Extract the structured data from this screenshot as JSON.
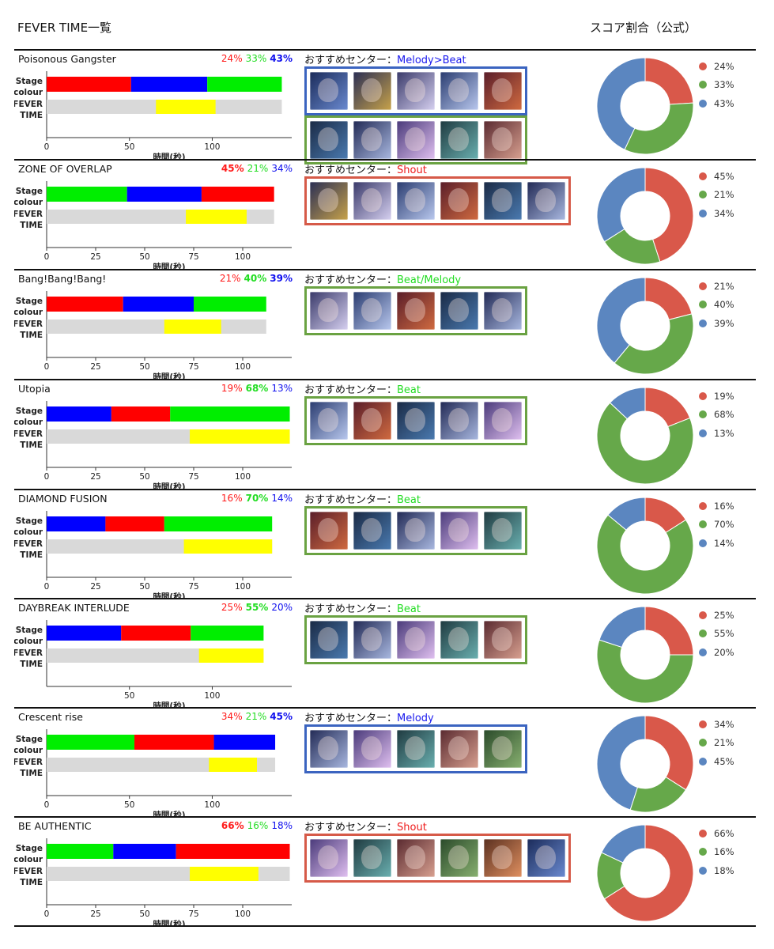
{
  "header": {
    "title": "FEVER TIME一覧",
    "score_label": "スコア割合（公式）"
  },
  "labels": {
    "stage": [
      "Stage",
      "colour"
    ],
    "fever": [
      "FEVER",
      "TIME"
    ],
    "xaxis": "時間(秒)",
    "recommend_prefix": "おすすめセンター："
  },
  "colors": {
    "stage_red": "#ff0000",
    "stage_green": "#00ee00",
    "stage_blue": "#0000ff",
    "fever_yellow": "#ffff00",
    "fever_bg": "#d9d9d9",
    "donut_red": "#d9584a",
    "donut_green": "#66a84a",
    "donut_blue": "#5b86c0",
    "frame_melody": "#3b64c0",
    "frame_shout": "#d65a48",
    "frame_beat": "#6aa242",
    "rec_melody": "#1a1aee",
    "rec_shout": "#ee1a1a",
    "rec_beat": "#22dd22"
  },
  "chart_data": [
    {
      "type": "bar",
      "title": "Poisonous Gangster",
      "ticks": [
        0,
        50,
        100
      ],
      "xlim": [
        0,
        148
      ],
      "stage": [
        {
          "color": "red",
          "start": 0,
          "end": 51
        },
        {
          "color": "blue",
          "start": 51,
          "end": 97
        },
        {
          "color": "green",
          "start": 97,
          "end": 142
        }
      ],
      "fever_total": 142,
      "fever": {
        "start": 66,
        "end": 102
      },
      "pct": [
        {
          "color": "red",
          "text": "24%",
          "bold": false
        },
        {
          "color": "green",
          "text": "33%",
          "bold": false
        },
        {
          "color": "blue",
          "text": "43%",
          "bold": true
        }
      ],
      "recommend": {
        "text": "Melody>Beat",
        "color": "melody"
      },
      "rows": [
        {
          "frame": "melody",
          "cards": 5
        },
        {
          "frame": "beat",
          "cards": 5
        }
      ],
      "donut": {
        "red": 24,
        "green": 33,
        "blue": 43
      }
    },
    {
      "type": "bar",
      "title": "ZONE OF OVERLAP",
      "ticks": [
        0,
        25,
        50,
        75,
        100
      ],
      "xlim": [
        0,
        125
      ],
      "stage": [
        {
          "color": "green",
          "start": 0,
          "end": 41
        },
        {
          "color": "blue",
          "start": 41,
          "end": 79
        },
        {
          "color": "red",
          "start": 79,
          "end": 116
        }
      ],
      "fever_total": 116,
      "fever": {
        "start": 71,
        "end": 102
      },
      "pct": [
        {
          "color": "red",
          "text": "45%",
          "bold": true
        },
        {
          "color": "green",
          "text": "21%",
          "bold": false
        },
        {
          "color": "blue",
          "text": "34%",
          "bold": false
        }
      ],
      "recommend": {
        "text": "Shout",
        "color": "shout"
      },
      "rows": [
        {
          "frame": "shout",
          "cards": 6
        }
      ],
      "donut": {
        "red": 45,
        "green": 21,
        "blue": 34
      }
    },
    {
      "type": "bar",
      "title": "Bang!Bang!Bang!",
      "ticks": [
        0,
        25,
        50,
        75,
        100
      ],
      "xlim": [
        0,
        125
      ],
      "stage": [
        {
          "color": "red",
          "start": 0,
          "end": 39
        },
        {
          "color": "blue",
          "start": 39,
          "end": 75
        },
        {
          "color": "green",
          "start": 75,
          "end": 112
        }
      ],
      "fever_total": 112,
      "fever": {
        "start": 60,
        "end": 89
      },
      "pct": [
        {
          "color": "red",
          "text": "21%",
          "bold": false
        },
        {
          "color": "green",
          "text": "40%",
          "bold": true
        },
        {
          "color": "blue",
          "text": "39%",
          "bold": true
        }
      ],
      "recommend": {
        "text": "Beat/Melody",
        "color": "beat"
      },
      "rows": [
        {
          "frame": "beat",
          "cards": 5
        }
      ],
      "donut": {
        "red": 21,
        "green": 40,
        "blue": 39
      }
    },
    {
      "type": "bar",
      "title": "Utopia",
      "ticks": [
        0,
        25,
        50,
        75,
        100
      ],
      "xlim": [
        0,
        125
      ],
      "stage": [
        {
          "color": "blue",
          "start": 0,
          "end": 33
        },
        {
          "color": "red",
          "start": 33,
          "end": 63
        },
        {
          "color": "green",
          "start": 63,
          "end": 124
        }
      ],
      "fever_total": 124,
      "fever": {
        "start": 73,
        "end": 124
      },
      "pct": [
        {
          "color": "red",
          "text": "19%",
          "bold": false
        },
        {
          "color": "green",
          "text": "68%",
          "bold": true
        },
        {
          "color": "blue",
          "text": "13%",
          "bold": false
        }
      ],
      "recommend": {
        "text": "Beat",
        "color": "beat"
      },
      "rows": [
        {
          "frame": "beat",
          "cards": 5
        }
      ],
      "donut": {
        "red": 19,
        "green": 68,
        "blue": 13
      }
    },
    {
      "type": "bar",
      "title": "DIAMOND FUSION",
      "ticks": [
        0,
        25,
        50,
        75,
        100
      ],
      "xlim": [
        0,
        125
      ],
      "stage": [
        {
          "color": "blue",
          "start": 0,
          "end": 30
        },
        {
          "color": "red",
          "start": 30,
          "end": 60
        },
        {
          "color": "green",
          "start": 60,
          "end": 115
        }
      ],
      "fever_total": 115,
      "fever": {
        "start": 70,
        "end": 115
      },
      "pct": [
        {
          "color": "red",
          "text": "16%",
          "bold": false
        },
        {
          "color": "green",
          "text": "70%",
          "bold": true
        },
        {
          "color": "blue",
          "text": "14%",
          "bold": false
        }
      ],
      "recommend": {
        "text": "Beat",
        "color": "beat"
      },
      "rows": [
        {
          "frame": "beat",
          "cards": 5
        }
      ],
      "donut": {
        "red": 16,
        "green": 70,
        "blue": 14
      }
    },
    {
      "type": "bar",
      "title": "DAYBREAK INTERLUDE",
      "ticks": [
        50,
        100
      ],
      "xlim": [
        0,
        148
      ],
      "stage": [
        {
          "color": "blue",
          "start": 0,
          "end": 45
        },
        {
          "color": "red",
          "start": 45,
          "end": 87
        },
        {
          "color": "green",
          "start": 87,
          "end": 131
        }
      ],
      "fever_total": 131,
      "fever": {
        "start": 92,
        "end": 131
      },
      "pct": [
        {
          "color": "red",
          "text": "25%",
          "bold": false
        },
        {
          "color": "green",
          "text": "55%",
          "bold": true
        },
        {
          "color": "blue",
          "text": "20%",
          "bold": false
        }
      ],
      "recommend": {
        "text": "Beat",
        "color": "beat"
      },
      "rows": [
        {
          "frame": "beat",
          "cards": 5
        }
      ],
      "donut": {
        "red": 25,
        "green": 55,
        "blue": 20
      }
    },
    {
      "type": "bar",
      "title": "Crescent rise",
      "ticks": [
        0,
        50,
        100
      ],
      "xlim": [
        0,
        148
      ],
      "stage": [
        {
          "color": "green",
          "start": 0,
          "end": 53
        },
        {
          "color": "red",
          "start": 53,
          "end": 101
        },
        {
          "color": "blue",
          "start": 101,
          "end": 138
        }
      ],
      "fever_total": 138,
      "fever": {
        "start": 98,
        "end": 127
      },
      "pct": [
        {
          "color": "red",
          "text": "34%",
          "bold": false
        },
        {
          "color": "green",
          "text": "21%",
          "bold": false
        },
        {
          "color": "blue",
          "text": "45%",
          "bold": true
        }
      ],
      "recommend": {
        "text": "Melody",
        "color": "melody"
      },
      "rows": [
        {
          "frame": "melody",
          "cards": 5
        }
      ],
      "donut": {
        "red": 34,
        "green": 21,
        "blue": 45
      }
    },
    {
      "type": "bar",
      "title": "BE AUTHENTIC",
      "ticks": [
        0,
        25,
        50,
        75,
        100
      ],
      "xlim": [
        0,
        125
      ],
      "stage": [
        {
          "color": "green",
          "start": 0,
          "end": 34
        },
        {
          "color": "blue",
          "start": 34,
          "end": 66
        },
        {
          "color": "red",
          "start": 66,
          "end": 124
        }
      ],
      "fever_total": 124,
      "fever": {
        "start": 73,
        "end": 108
      },
      "pct": [
        {
          "color": "red",
          "text": "66%",
          "bold": true
        },
        {
          "color": "green",
          "text": "16%",
          "bold": false
        },
        {
          "color": "blue",
          "text": "18%",
          "bold": false
        }
      ],
      "recommend": {
        "text": "Shout",
        "color": "shout"
      },
      "rows": [
        {
          "frame": "shout",
          "cards": 6
        }
      ],
      "donut": {
        "red": 66,
        "green": 16,
        "blue": 18
      }
    }
  ]
}
